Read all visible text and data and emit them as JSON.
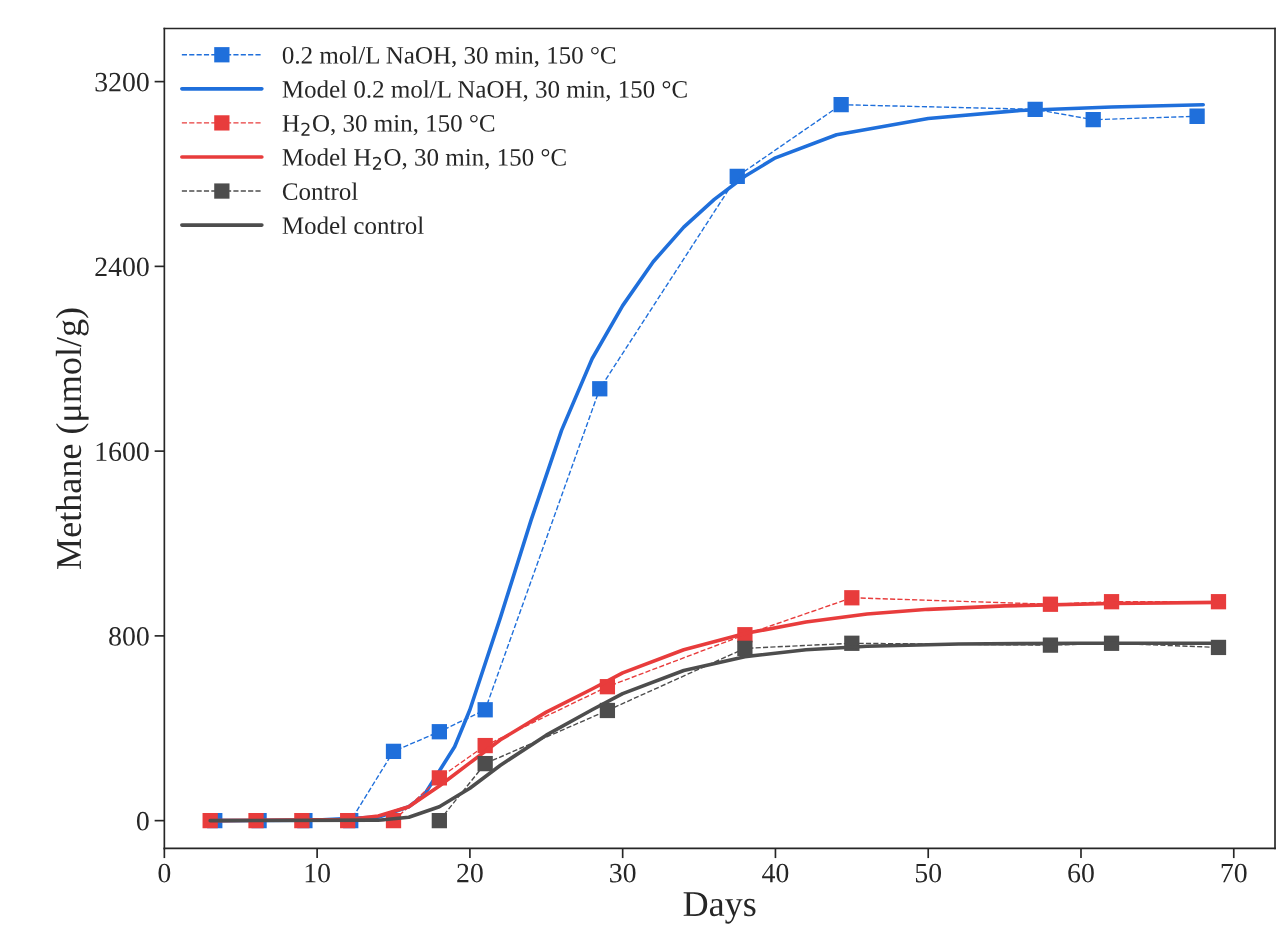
{
  "chart_data": {
    "type": "line",
    "xlabel": "Days",
    "ylabel": "Methane (μmol/g)",
    "xlim": [
      0,
      72.7
    ],
    "ylim": [
      -120,
      3430
    ],
    "xticks": [
      0,
      10,
      20,
      30,
      40,
      50,
      60,
      70
    ],
    "yticks": [
      0,
      800,
      1600,
      2400,
      3200
    ],
    "grid": false,
    "legend": "top left",
    "series": [
      {
        "name": "0.2 mol/L NaOH, 30 min, 150 °C",
        "color": "#1f6fdb",
        "marker": "square",
        "line_style": "dashed",
        "x": [
          3.3,
          6.2,
          9.2,
          12.2,
          15,
          18,
          21,
          28.5,
          37.5,
          44.3,
          57,
          60.8,
          67.6
        ],
        "values": [
          0,
          0,
          0,
          0,
          300,
          385,
          480,
          1870,
          2790,
          3100,
          3080,
          3035,
          3050
        ]
      },
      {
        "name": "Model 0.2 mol/L NaOH, 30 min, 150 °C",
        "color": "#1f6fdb",
        "marker": "none",
        "line_style": "solid",
        "x": [
          3,
          10,
          14,
          16,
          17,
          19,
          20,
          22,
          24,
          26,
          28,
          30,
          32,
          34,
          36,
          38,
          40,
          44,
          50,
          56,
          62,
          68
        ],
        "values": [
          0,
          2,
          15,
          60,
          110,
          320,
          480,
          880,
          1300,
          1690,
          2000,
          2230,
          2420,
          2570,
          2690,
          2790,
          2870,
          2970,
          3040,
          3075,
          3090,
          3100
        ]
      },
      {
        "name": "H$_{2}$O, 30 min, 150 °C",
        "color": "#e83c3c",
        "marker": "square",
        "line_style": "dashed",
        "x": [
          3,
          6,
          9,
          12,
          15,
          18,
          21,
          29,
          38,
          45,
          58,
          62,
          69
        ],
        "values": [
          0,
          0,
          0,
          0,
          0,
          185,
          325,
          580,
          805,
          965,
          937,
          948,
          948
        ]
      },
      {
        "name": "Model H$_{2}$O, 30 min, 150 °C",
        "color": "#e83c3c",
        "marker": "none",
        "line_style": "solid",
        "x": [
          3,
          12,
          14,
          16,
          18,
          20,
          22,
          25,
          28,
          30,
          34,
          38,
          42,
          46,
          50,
          55,
          62,
          69
        ],
        "values": [
          0,
          5,
          20,
          60,
          150,
          250,
          350,
          470,
          570,
          640,
          740,
          810,
          860,
          895,
          915,
          930,
          940,
          945
        ]
      },
      {
        "name": "Control",
        "color": "#4d4d4d",
        "marker": "square",
        "line_style": "dashed",
        "x": [
          18,
          21,
          29,
          38,
          45,
          58,
          62,
          69
        ],
        "values": [
          0,
          247,
          477,
          746,
          768,
          760,
          768,
          750
        ]
      },
      {
        "name": "Model control",
        "color": "#4d4d4d",
        "marker": "none",
        "line_style": "solid",
        "x": [
          3,
          14,
          16,
          18,
          20,
          22,
          25,
          28,
          30,
          34,
          38,
          42,
          46,
          52,
          60,
          69
        ],
        "values": [
          0,
          2,
          15,
          60,
          140,
          240,
          370,
          480,
          550,
          650,
          710,
          740,
          755,
          765,
          768,
          768
        ]
      }
    ]
  }
}
